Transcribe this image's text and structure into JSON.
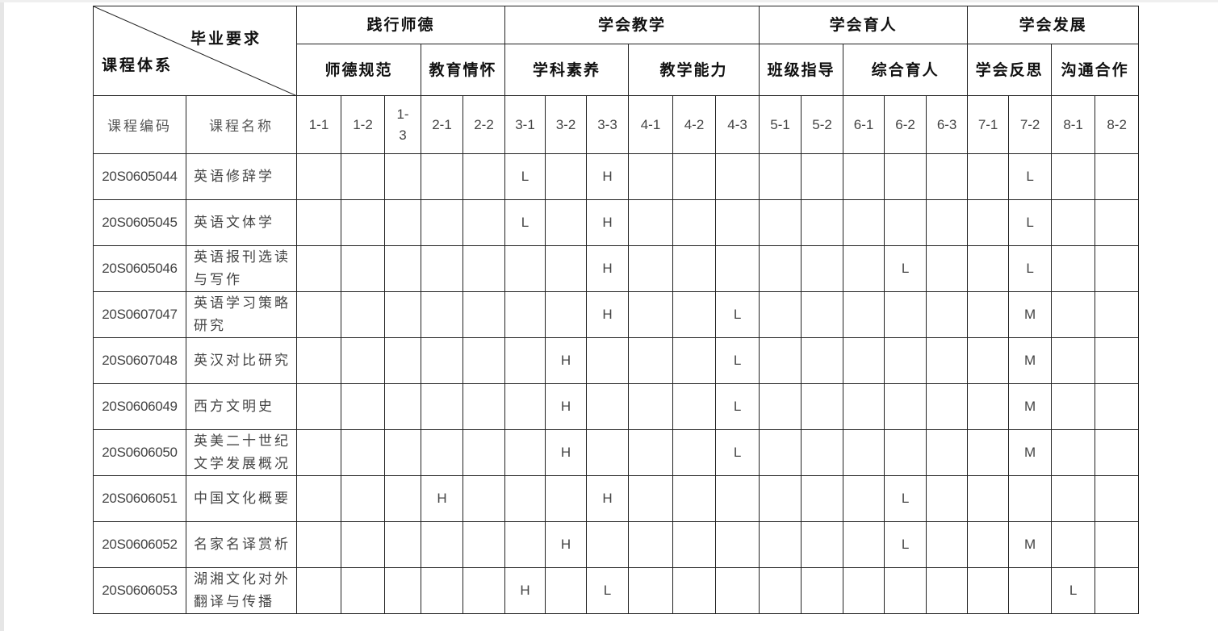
{
  "corner": {
    "top_label": "毕业要求",
    "bottom_label": "课程体系"
  },
  "groups": [
    {
      "label": "践行师德",
      "subs": [
        {
          "label": "师德规范",
          "codes": [
            "1-1",
            "1-2",
            "1-3"
          ]
        },
        {
          "label": "教育情怀",
          "codes": [
            "2-1",
            "2-2"
          ]
        }
      ]
    },
    {
      "label": "学会教学",
      "subs": [
        {
          "label": "学科素养",
          "codes": [
            "3-1",
            "3-2",
            "3-3"
          ]
        },
        {
          "label": "教学能力",
          "codes": [
            "4-1",
            "4-2",
            "4-3"
          ]
        }
      ]
    },
    {
      "label": "学会育人",
      "subs": [
        {
          "label": "班级指导",
          "codes": [
            "5-1",
            "5-2"
          ]
        },
        {
          "label": "综合育人",
          "codes": [
            "6-1",
            "6-2",
            "6-3"
          ]
        }
      ]
    },
    {
      "label": "学会发展",
      "subs": [
        {
          "label": "学会反思",
          "codes": [
            "7-1",
            "7-2"
          ]
        },
        {
          "label": "沟通合作",
          "codes": [
            "8-1",
            "8-2"
          ]
        }
      ]
    }
  ],
  "column_headers": {
    "code": "课程编码",
    "name": "课程名称"
  },
  "codes": [
    "1-1",
    "1-2",
    "1-3",
    "2-1",
    "2-2",
    "3-1",
    "3-2",
    "3-3",
    "4-1",
    "4-2",
    "4-3",
    "5-1",
    "5-2",
    "6-1",
    "6-2",
    "6-3",
    "7-1",
    "7-2",
    "8-1",
    "8-2"
  ],
  "courses": [
    {
      "id": "20S0605044",
      "name": "英语修辞学",
      "marks": {
        "3-1": "L",
        "3-3": "H",
        "7-2": "L"
      }
    },
    {
      "id": "20S0605045",
      "name": "英语文体学",
      "marks": {
        "3-1": "L",
        "3-3": "H",
        "7-2": "L"
      }
    },
    {
      "id": "20S0605046",
      "name": "英语报刊选读与写作",
      "marks": {
        "3-3": "H",
        "6-2": "L",
        "7-2": "L"
      }
    },
    {
      "id": "20S0607047",
      "name": "英语学习策略研究",
      "marks": {
        "3-3": "H",
        "4-3": "L",
        "7-2": "M"
      }
    },
    {
      "id": "20S0607048",
      "name": "英汉对比研究",
      "marks": {
        "3-2": "H",
        "4-3": "L",
        "7-2": "M"
      }
    },
    {
      "id": "20S0606049",
      "name": "西方文明史",
      "marks": {
        "3-2": "H",
        "4-3": "L",
        "7-2": "M"
      }
    },
    {
      "id": "20S0606050",
      "name": "英美二十世纪文学发展概况",
      "marks": {
        "3-2": "H",
        "4-3": "L",
        "7-2": "M"
      }
    },
    {
      "id": "20S0606051",
      "name": "中国文化概要",
      "marks": {
        "2-1": "H",
        "3-3": "H",
        "6-2": "L"
      }
    },
    {
      "id": "20S0606052",
      "name": "名家名译赏析",
      "marks": {
        "3-2": "H",
        "6-2": "L",
        "7-2": "M"
      }
    },
    {
      "id": "20S0606053",
      "name": "湖湘文化对外翻译与传播",
      "marks": {
        "3-1": "H",
        "3-3": "L",
        "8-1": "L"
      }
    }
  ]
}
